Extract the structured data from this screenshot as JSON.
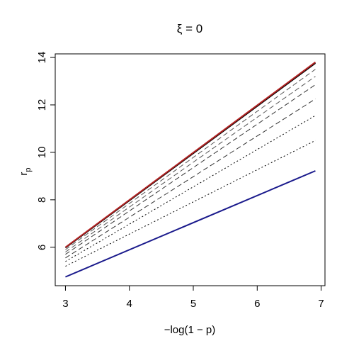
{
  "chart_data": {
    "type": "line",
    "title": "ξ = 0",
    "xlabel": "−log(1 − p)",
    "ylabel": "r",
    "ylabel_sub": "p",
    "xlim": [
      2.84,
      7.06
    ],
    "ylim": [
      4.38,
      14.15
    ],
    "xticks": [
      3,
      4,
      5,
      6,
      7
    ],
    "yticks": [
      6,
      8,
      10,
      12,
      14
    ],
    "x": [
      3,
      6.91
    ],
    "series": [
      {
        "color": "#000000",
        "dash": "solid",
        "values": [
          5.98,
          13.76
        ]
      },
      {
        "color": "#b22222",
        "dash": "solid",
        "values": [
          6.0,
          13.8
        ]
      },
      {
        "color": "#555555",
        "dash": "dashed",
        "values": [
          5.9,
          13.5
        ]
      },
      {
        "color": "#555555",
        "dash": "dashed",
        "values": [
          5.8,
          13.2
        ]
      },
      {
        "color": "#333333",
        "dash": "dashed",
        "values": [
          5.7,
          12.85
        ]
      },
      {
        "color": "#333333",
        "dash": "dashed",
        "values": [
          5.55,
          12.25
        ]
      },
      {
        "color": "#000000",
        "dash": "dotted",
        "values": [
          5.4,
          11.55
        ]
      },
      {
        "color": "#000000",
        "dash": "dotted",
        "values": [
          5.2,
          10.5
        ]
      },
      {
        "color": "#1a1a8c",
        "dash": "solid",
        "values": [
          4.75,
          9.22
        ]
      }
    ]
  }
}
